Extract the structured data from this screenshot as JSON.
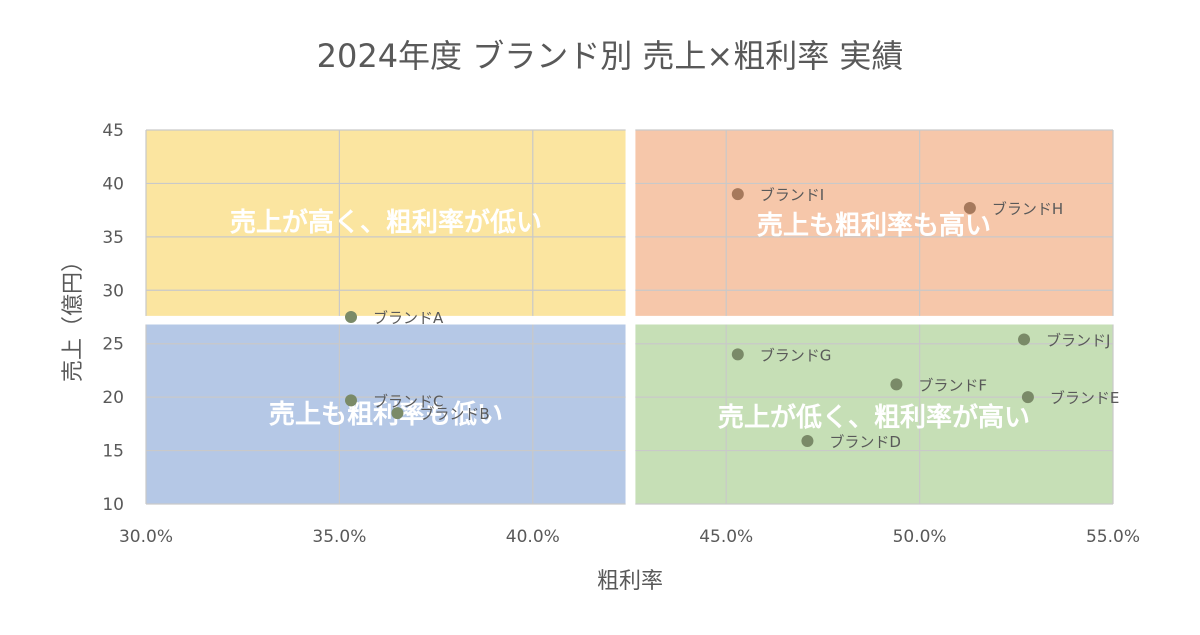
{
  "chart_data": {
    "type": "scatter",
    "title": "2024年度 ブランド別 売上×粗利率 実績",
    "xlabel": "粗利率",
    "ylabel": "売上（億円）",
    "xlim": [
      0.3,
      0.55
    ],
    "ylim": [
      10,
      45
    ],
    "x_ticks": [
      "30.0%",
      "35.0%",
      "40.0%",
      "45.0%",
      "50.0%",
      "55.0%"
    ],
    "y_ticks": [
      "10",
      "15",
      "20",
      "25",
      "30",
      "35",
      "40",
      "45"
    ],
    "grid": true,
    "quadrants": [
      {
        "label": "売上が高く、粗利率が低い",
        "color": "#fbe5a0",
        "x_range": [
          0.3,
          0.424
        ],
        "y_range": [
          27.6,
          45
        ]
      },
      {
        "label": "売上も粗利率も高い",
        "color": "#f6c7aa",
        "x_range": [
          0.4265,
          0.55
        ],
        "y_range": [
          27.6,
          45
        ]
      },
      {
        "label": "売上も粗利率も低い",
        "color": "#b5c8e6",
        "x_range": [
          0.3,
          0.424
        ],
        "y_range": [
          10,
          26.8
        ]
      },
      {
        "label": "売上が低く、粗利率が高い",
        "color": "#c6dfb6",
        "x_range": [
          0.4265,
          0.55
        ],
        "y_range": [
          10,
          26.8
        ]
      }
    ],
    "points": [
      {
        "name": "ブランドA",
        "x": 0.353,
        "y": 27.5
      },
      {
        "name": "ブランドB",
        "x": 0.365,
        "y": 18.5
      },
      {
        "name": "ブランドC",
        "x": 0.353,
        "y": 19.7
      },
      {
        "name": "ブランドD",
        "x": 0.471,
        "y": 15.9
      },
      {
        "name": "ブランドE",
        "x": 0.528,
        "y": 20.0
      },
      {
        "name": "ブランドF",
        "x": 0.494,
        "y": 21.2
      },
      {
        "name": "ブランドG",
        "x": 0.453,
        "y": 24.0
      },
      {
        "name": "ブランドH",
        "x": 0.513,
        "y": 37.7
      },
      {
        "name": "ブランドI",
        "x": 0.453,
        "y": 39.0
      },
      {
        "name": "ブランドJ",
        "x": 0.527,
        "y": 25.4
      }
    ],
    "colors": {
      "point_top_right": "#a6795c",
      "point_other": "#7a8a68"
    }
  }
}
